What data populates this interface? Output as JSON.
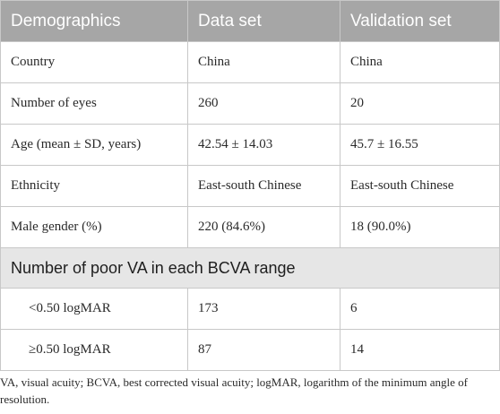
{
  "table": {
    "headers": [
      "Demographics",
      "Data set",
      "Validation set"
    ],
    "rows": [
      {
        "label": "Country",
        "data_set": "China",
        "validation_set": "China"
      },
      {
        "label": "Number of eyes",
        "data_set": "260",
        "validation_set": "20"
      },
      {
        "label": "Age (mean ± SD, years)",
        "data_set": "42.54 ± 14.03",
        "validation_set": "45.7 ± 16.55"
      },
      {
        "label": "Ethnicity",
        "data_set": "East-south Chinese",
        "validation_set": "East-south Chinese"
      },
      {
        "label": "Male gender (%)",
        "data_set": "220 (84.6%)",
        "validation_set": "18 (90.0%)"
      }
    ],
    "section": {
      "title": "Number of poor VA in each BCVA range",
      "rows": [
        {
          "label": "<0.50 logMAR",
          "data_set": "173",
          "validation_set": "6"
        },
        {
          "label": "≥0.50 logMAR",
          "data_set": "87",
          "validation_set": "14"
        }
      ]
    }
  },
  "footnote": "VA, visual acuity; BCVA, best corrected visual acuity; logMAR, logarithm of the minimum angle of resolution.",
  "colors": {
    "header_bg": "#a6a6a6",
    "section_bg": "#e6e6e6",
    "border": "#c8c8c8"
  }
}
